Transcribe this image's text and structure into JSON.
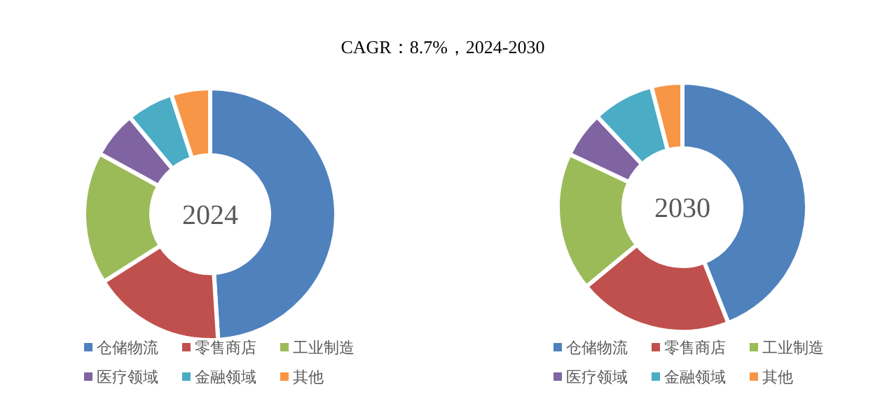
{
  "chart_data": [
    {
      "type": "donut",
      "title": "2024",
      "annotations": [
        "CAGR：8.7%，2024-2030"
      ],
      "legend": "bottom",
      "categories": [
        "仓储物流",
        "零售商店",
        "工业制造",
        "医疗领域",
        "金融领域",
        "其他"
      ],
      "values": [
        49,
        17,
        17,
        6,
        6,
        5
      ],
      "colors": [
        "#4f81bd",
        "#c0504d",
        "#9bbb59",
        "#8064a2",
        "#4bacc6",
        "#f79646"
      ]
    },
    {
      "type": "donut",
      "title": "2030",
      "legend": "bottom",
      "categories": [
        "仓储物流",
        "零售商店",
        "工业制造",
        "医疗领域",
        "金融领域",
        "其他"
      ],
      "values": [
        44,
        20,
        18,
        6,
        8,
        4
      ],
      "colors": [
        "#4f81bd",
        "#c0504d",
        "#9bbb59",
        "#8064a2",
        "#4bacc6",
        "#f79646"
      ]
    }
  ]
}
